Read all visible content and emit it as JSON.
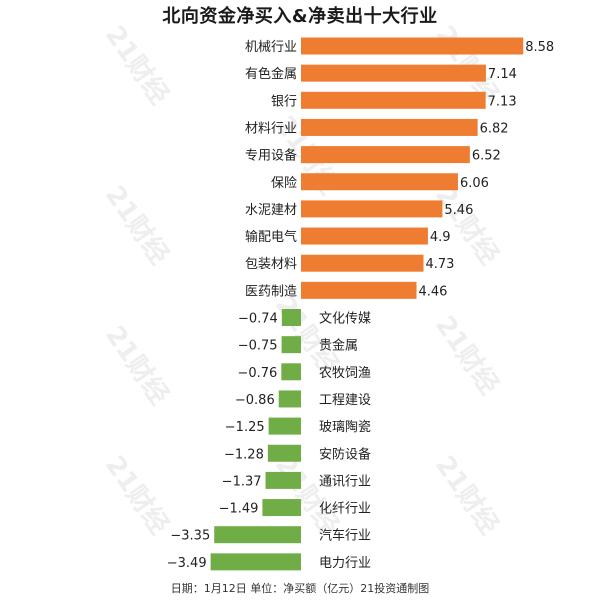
{
  "chart_data": {
    "type": "bar",
    "orientation": "horizontal",
    "title": "北向资金净买入&净卖出十大行业",
    "note": "日期：1月12日 单位：净买额（亿元）21投资通制图",
    "watermark": "21财经",
    "colors": {
      "positive": "#ee7d32",
      "negative": "#70ad47"
    },
    "categories": [
      "机械行业",
      "有色金属",
      "银行",
      "材料行业",
      "专用设备",
      "保险",
      "水泥建材",
      "输配电气",
      "包装材料",
      "医药制造",
      "文化传媒",
      "贵金属",
      "农牧饲渔",
      "工程建设",
      "玻璃陶瓷",
      "安防设备",
      "通讯行业",
      "化纤行业",
      "汽车行业",
      "电力行业"
    ],
    "values": [
      8.58,
      7.14,
      7.13,
      6.82,
      6.52,
      6.06,
      5.46,
      4.9,
      4.73,
      4.46,
      -0.74,
      -0.75,
      -0.76,
      -0.86,
      -1.25,
      -1.28,
      -1.37,
      -1.49,
      -3.35,
      -3.49
    ],
    "value_labels": [
      "8.58",
      "7.14",
      "7.13",
      "6.82",
      "6.52",
      "6.06",
      "5.46",
      "4.9",
      "4.73",
      "4.46",
      "−0.74",
      "−0.75",
      "−0.76",
      "−0.86",
      "−1.25",
      "−1.28",
      "−1.37",
      "−1.49",
      "−3.35",
      "−3.49"
    ]
  }
}
